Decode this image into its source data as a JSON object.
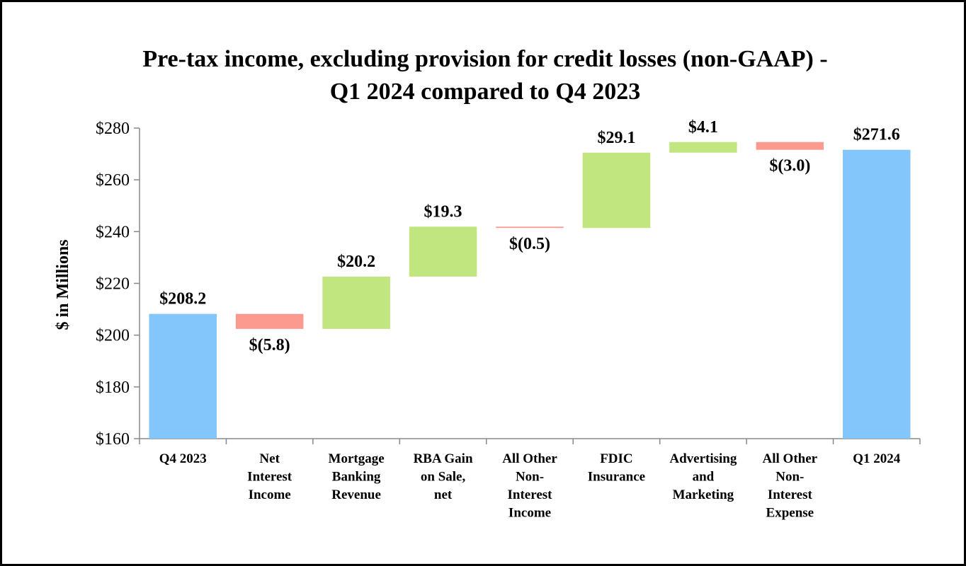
{
  "chart_data": {
    "type": "waterfall",
    "title_lines": [
      "Pre-tax income, excluding provision for credit losses (non-GAAP) -",
      "Q1 2024 compared to Q4 2023"
    ],
    "ylabel": "$ in Millions",
    "ylim": [
      160,
      280
    ],
    "yticks": [
      160,
      180,
      200,
      220,
      240,
      260,
      280
    ],
    "ytick_labels": [
      "$160",
      "$180",
      "$200",
      "$220",
      "$240",
      "$260",
      "$280"
    ],
    "categories": [
      [
        "Q4 2023"
      ],
      [
        "Net",
        "Interest",
        "Income"
      ],
      [
        "Mortgage",
        "Banking",
        "Revenue"
      ],
      [
        "RBA Gain",
        "on Sale,",
        "net"
      ],
      [
        "All Other",
        "Non-",
        "Interest",
        "Income"
      ],
      [
        "FDIC",
        "Insurance"
      ],
      [
        "Advertising",
        "and",
        "Marketing"
      ],
      [
        "All Other",
        "Non-",
        "Interest",
        "Expense"
      ],
      [
        "Q1 2024"
      ]
    ],
    "values": [
      208.2,
      -5.8,
      20.2,
      19.3,
      -0.5,
      29.1,
      4.1,
      -3.0,
      271.6
    ],
    "kinds": [
      "total",
      "delta",
      "delta",
      "delta",
      "delta",
      "delta",
      "delta",
      "delta",
      "total"
    ],
    "data_labels": [
      "$208.2",
      "$(5.8)",
      "$20.2",
      "$19.3",
      "$(0.5)",
      "$29.1",
      "$4.1",
      "$(3.0)",
      "$271.6"
    ],
    "colors": {
      "total": "#82c6fb",
      "increase": "#c1e67f",
      "decrease": "#fc9a90"
    },
    "grid": false,
    "legend": "none"
  }
}
